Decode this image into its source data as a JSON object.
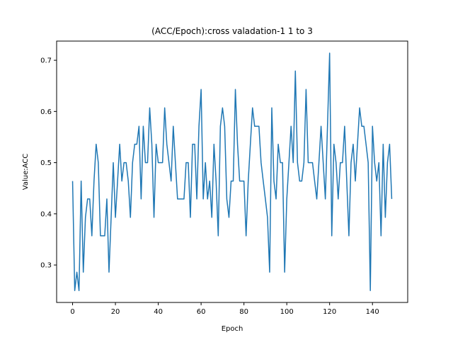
{
  "chart_data": {
    "type": "line",
    "title": "(ACC/Epoch):cross valadation-1 1 to 3",
    "xlabel": "Epoch",
    "ylabel": "Value:ACC",
    "xlim": [
      -7.45,
      156.45
    ],
    "ylim": [
      0.2268,
      0.7375
    ],
    "xticks": [
      0,
      20,
      40,
      60,
      80,
      100,
      120,
      140
    ],
    "yticks": [
      0.3,
      0.4,
      0.5,
      0.6,
      0.7
    ],
    "ytick_labels": [
      "0.3",
      "0.4",
      "0.5",
      "0.6",
      "0.7"
    ],
    "grid": false,
    "series": [
      {
        "color": "#1f77b4",
        "x": [
          0,
          1,
          2,
          3,
          4,
          5,
          6,
          7,
          8,
          9,
          10,
          11,
          12,
          13,
          14,
          15,
          16,
          17,
          18,
          19,
          20,
          21,
          22,
          23,
          24,
          25,
          26,
          27,
          28,
          29,
          30,
          31,
          32,
          33,
          34,
          35,
          36,
          37,
          38,
          39,
          40,
          41,
          42,
          43,
          44,
          45,
          46,
          47,
          48,
          49,
          50,
          51,
          52,
          53,
          54,
          55,
          56,
          57,
          58,
          59,
          60,
          61,
          62,
          63,
          64,
          65,
          66,
          67,
          68,
          69,
          70,
          71,
          72,
          73,
          74,
          75,
          76,
          77,
          78,
          79,
          80,
          81,
          82,
          83,
          84,
          85,
          86,
          87,
          88,
          89,
          90,
          91,
          92,
          93,
          94,
          95,
          96,
          97,
          98,
          99,
          100,
          101,
          102,
          103,
          104,
          105,
          106,
          107,
          108,
          109,
          110,
          111,
          112,
          113,
          114,
          115,
          116,
          117,
          118,
          119,
          120,
          121,
          122,
          123,
          124,
          125,
          126,
          127,
          128,
          129,
          130,
          131,
          132,
          133,
          134,
          135,
          136,
          137,
          138,
          139,
          140,
          141,
          142,
          143,
          144,
          145,
          146,
          147,
          148,
          149
        ],
        "y": [
          0.464,
          0.25,
          0.286,
          0.25,
          0.464,
          0.286,
          0.393,
          0.429,
          0.429,
          0.357,
          0.464,
          0.536,
          0.5,
          0.357,
          0.357,
          0.357,
          0.429,
          0.286,
          0.393,
          0.5,
          0.393,
          0.464,
          0.536,
          0.464,
          0.5,
          0.5,
          0.464,
          0.393,
          0.5,
          0.536,
          0.536,
          0.571,
          0.429,
          0.571,
          0.5,
          0.5,
          0.607,
          0.536,
          0.393,
          0.536,
          0.5,
          0.5,
          0.5,
          0.607,
          0.536,
          0.5,
          0.464,
          0.571,
          0.5,
          0.429,
          0.429,
          0.429,
          0.429,
          0.5,
          0.5,
          0.393,
          0.536,
          0.536,
          0.429,
          0.571,
          0.643,
          0.429,
          0.5,
          0.429,
          0.464,
          0.393,
          0.536,
          0.464,
          0.357,
          0.571,
          0.607,
          0.571,
          0.429,
          0.393,
          0.464,
          0.464,
          0.643,
          0.536,
          0.464,
          0.464,
          0.464,
          0.357,
          0.464,
          0.536,
          0.607,
          0.571,
          0.571,
          0.571,
          0.5,
          0.464,
          0.429,
          0.393,
          0.286,
          0.607,
          0.464,
          0.429,
          0.536,
          0.5,
          0.5,
          0.286,
          0.429,
          0.5,
          0.571,
          0.5,
          0.679,
          0.5,
          0.464,
          0.464,
          0.5,
          0.643,
          0.5,
          0.5,
          0.5,
          0.464,
          0.429,
          0.5,
          0.571,
          0.5,
          0.429,
          0.571,
          0.714,
          0.357,
          0.536,
          0.5,
          0.429,
          0.5,
          0.5,
          0.571,
          0.464,
          0.357,
          0.5,
          0.536,
          0.464,
          0.536,
          0.607,
          0.571,
          0.571,
          0.536,
          0.5,
          0.25,
          0.571,
          0.5,
          0.464,
          0.5,
          0.357,
          0.536,
          0.393,
          0.5,
          0.536,
          0.429
        ]
      }
    ]
  }
}
